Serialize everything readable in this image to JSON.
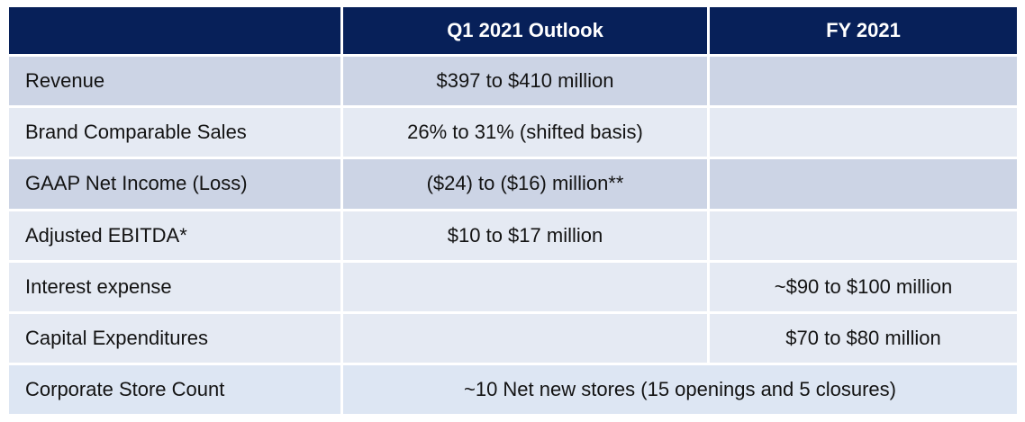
{
  "table": {
    "columns": [
      {
        "label": ""
      },
      {
        "label": "Q1 2021 Outlook"
      },
      {
        "label": "FY 2021"
      }
    ],
    "rows": [
      {
        "label": "Revenue",
        "q1": "$397 to $410 million",
        "fy": ""
      },
      {
        "label": "Brand Comparable Sales",
        "q1": "26% to 31% (shifted basis)",
        "fy": ""
      },
      {
        "label": "GAAP Net Income (Loss)",
        "q1": "($24) to ($16) million**",
        "fy": ""
      },
      {
        "label": "Adjusted EBITDA*",
        "q1": "$10 to $17 million",
        "fy": ""
      },
      {
        "label": "Interest expense",
        "q1": "",
        "fy": "~$90 to $100 million"
      },
      {
        "label": "Capital Expenditures",
        "q1": "",
        "fy": "$70 to $80 million"
      },
      {
        "label": "Corporate Store Count",
        "merged": "~10 Net new stores (15 openings and 5 closures)"
      }
    ],
    "colors": {
      "header_bg": "#072059",
      "header_text": "#FFFFFF",
      "band_dark": "#CCD4E5",
      "band_light": "#E5EAF3",
      "band_footer": "#DDE6F3",
      "body_text": "#131313"
    }
  }
}
